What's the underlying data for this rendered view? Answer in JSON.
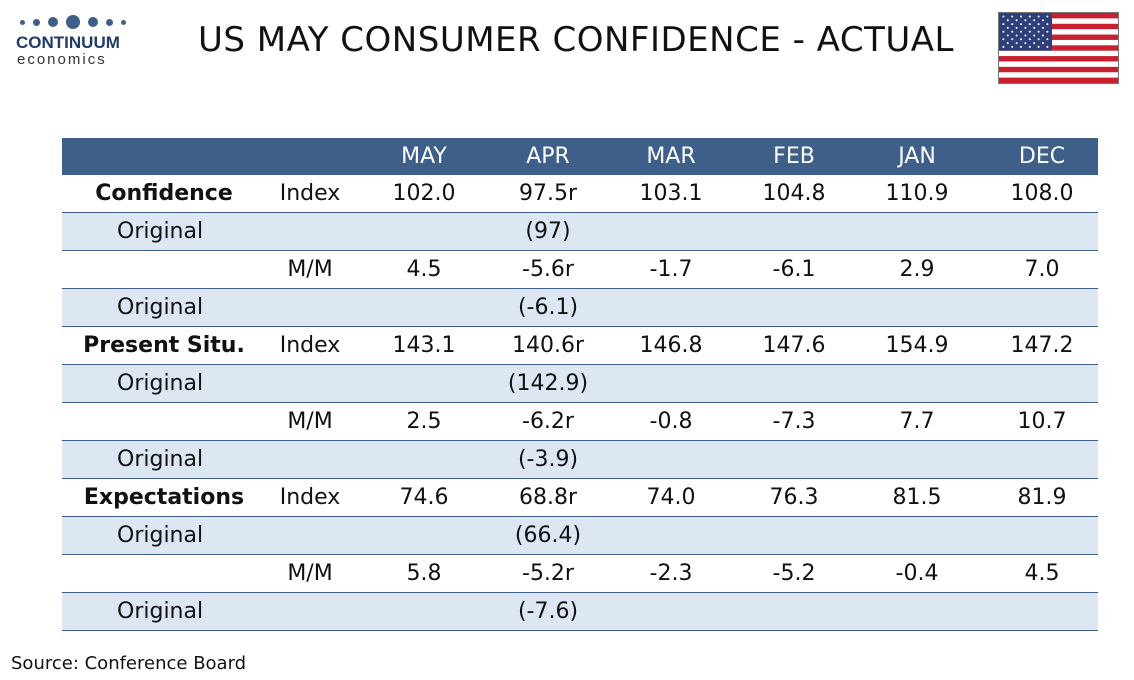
{
  "logo": {
    "name": "CONTINUUM",
    "sub": "economics",
    "dot_color": "#3e5f8a"
  },
  "title": "US MAY CONSUMER CONFIDENCE - ACTUAL",
  "flag_icon": "us-flag-icon",
  "colors": {
    "header_bg": "#3e5f8a",
    "shade_row": "#dde7f3"
  },
  "table": {
    "columns": [
      "",
      "",
      "MAY",
      "APR",
      "MAR",
      "FEB",
      "JAN",
      "DEC"
    ],
    "rows": [
      {
        "label": "Confidence",
        "measure": "Index",
        "values": [
          "102.0",
          "97.5r",
          "103.1",
          "104.8",
          "110.9",
          "108.0"
        ],
        "kind": "main",
        "shade": false
      },
      {
        "label": "Original",
        "measure": "",
        "values": [
          "",
          "(97)",
          "",
          "",
          "",
          ""
        ],
        "kind": "orig",
        "shade": true
      },
      {
        "label": "",
        "measure": "M/M",
        "values": [
          "4.5",
          "-5.6r",
          "-1.7",
          "-6.1",
          "2.9",
          "7.0"
        ],
        "kind": "mm",
        "shade": false
      },
      {
        "label": "Original",
        "measure": "",
        "values": [
          "",
          "(-6.1)",
          "",
          "",
          "",
          ""
        ],
        "kind": "orig",
        "shade": true
      },
      {
        "label": "Present Situ.",
        "measure": "Index",
        "values": [
          "143.1",
          "140.6r",
          "146.8",
          "147.6",
          "154.9",
          "147.2"
        ],
        "kind": "main",
        "shade": false
      },
      {
        "label": "Original",
        "measure": "",
        "values": [
          "",
          "(142.9)",
          "",
          "",
          "",
          ""
        ],
        "kind": "orig",
        "shade": true
      },
      {
        "label": "",
        "measure": "M/M",
        "values": [
          "2.5",
          "-6.2r",
          "-0.8",
          "-7.3",
          "7.7",
          "10.7"
        ],
        "kind": "mm",
        "shade": false
      },
      {
        "label": "Original",
        "measure": "",
        "values": [
          "",
          "(-3.9)",
          "",
          "",
          "",
          ""
        ],
        "kind": "orig",
        "shade": true
      },
      {
        "label": "Expectations",
        "measure": "Index",
        "values": [
          "74.6",
          "68.8r",
          "74.0",
          "76.3",
          "81.5",
          "81.9"
        ],
        "kind": "main",
        "shade": false
      },
      {
        "label": "Original",
        "measure": "",
        "values": [
          "",
          "(66.4)",
          "",
          "",
          "",
          ""
        ],
        "kind": "orig",
        "shade": true
      },
      {
        "label": "",
        "measure": "M/M",
        "values": [
          "5.8",
          "-5.2r",
          "-2.3",
          "-5.2",
          "-0.4",
          "4.5"
        ],
        "kind": "mm",
        "shade": false
      },
      {
        "label": "Original",
        "measure": "",
        "values": [
          "",
          "(-7.6)",
          "",
          "",
          "",
          ""
        ],
        "kind": "orig",
        "shade": true
      }
    ]
  },
  "source": "Source: Conference Board"
}
